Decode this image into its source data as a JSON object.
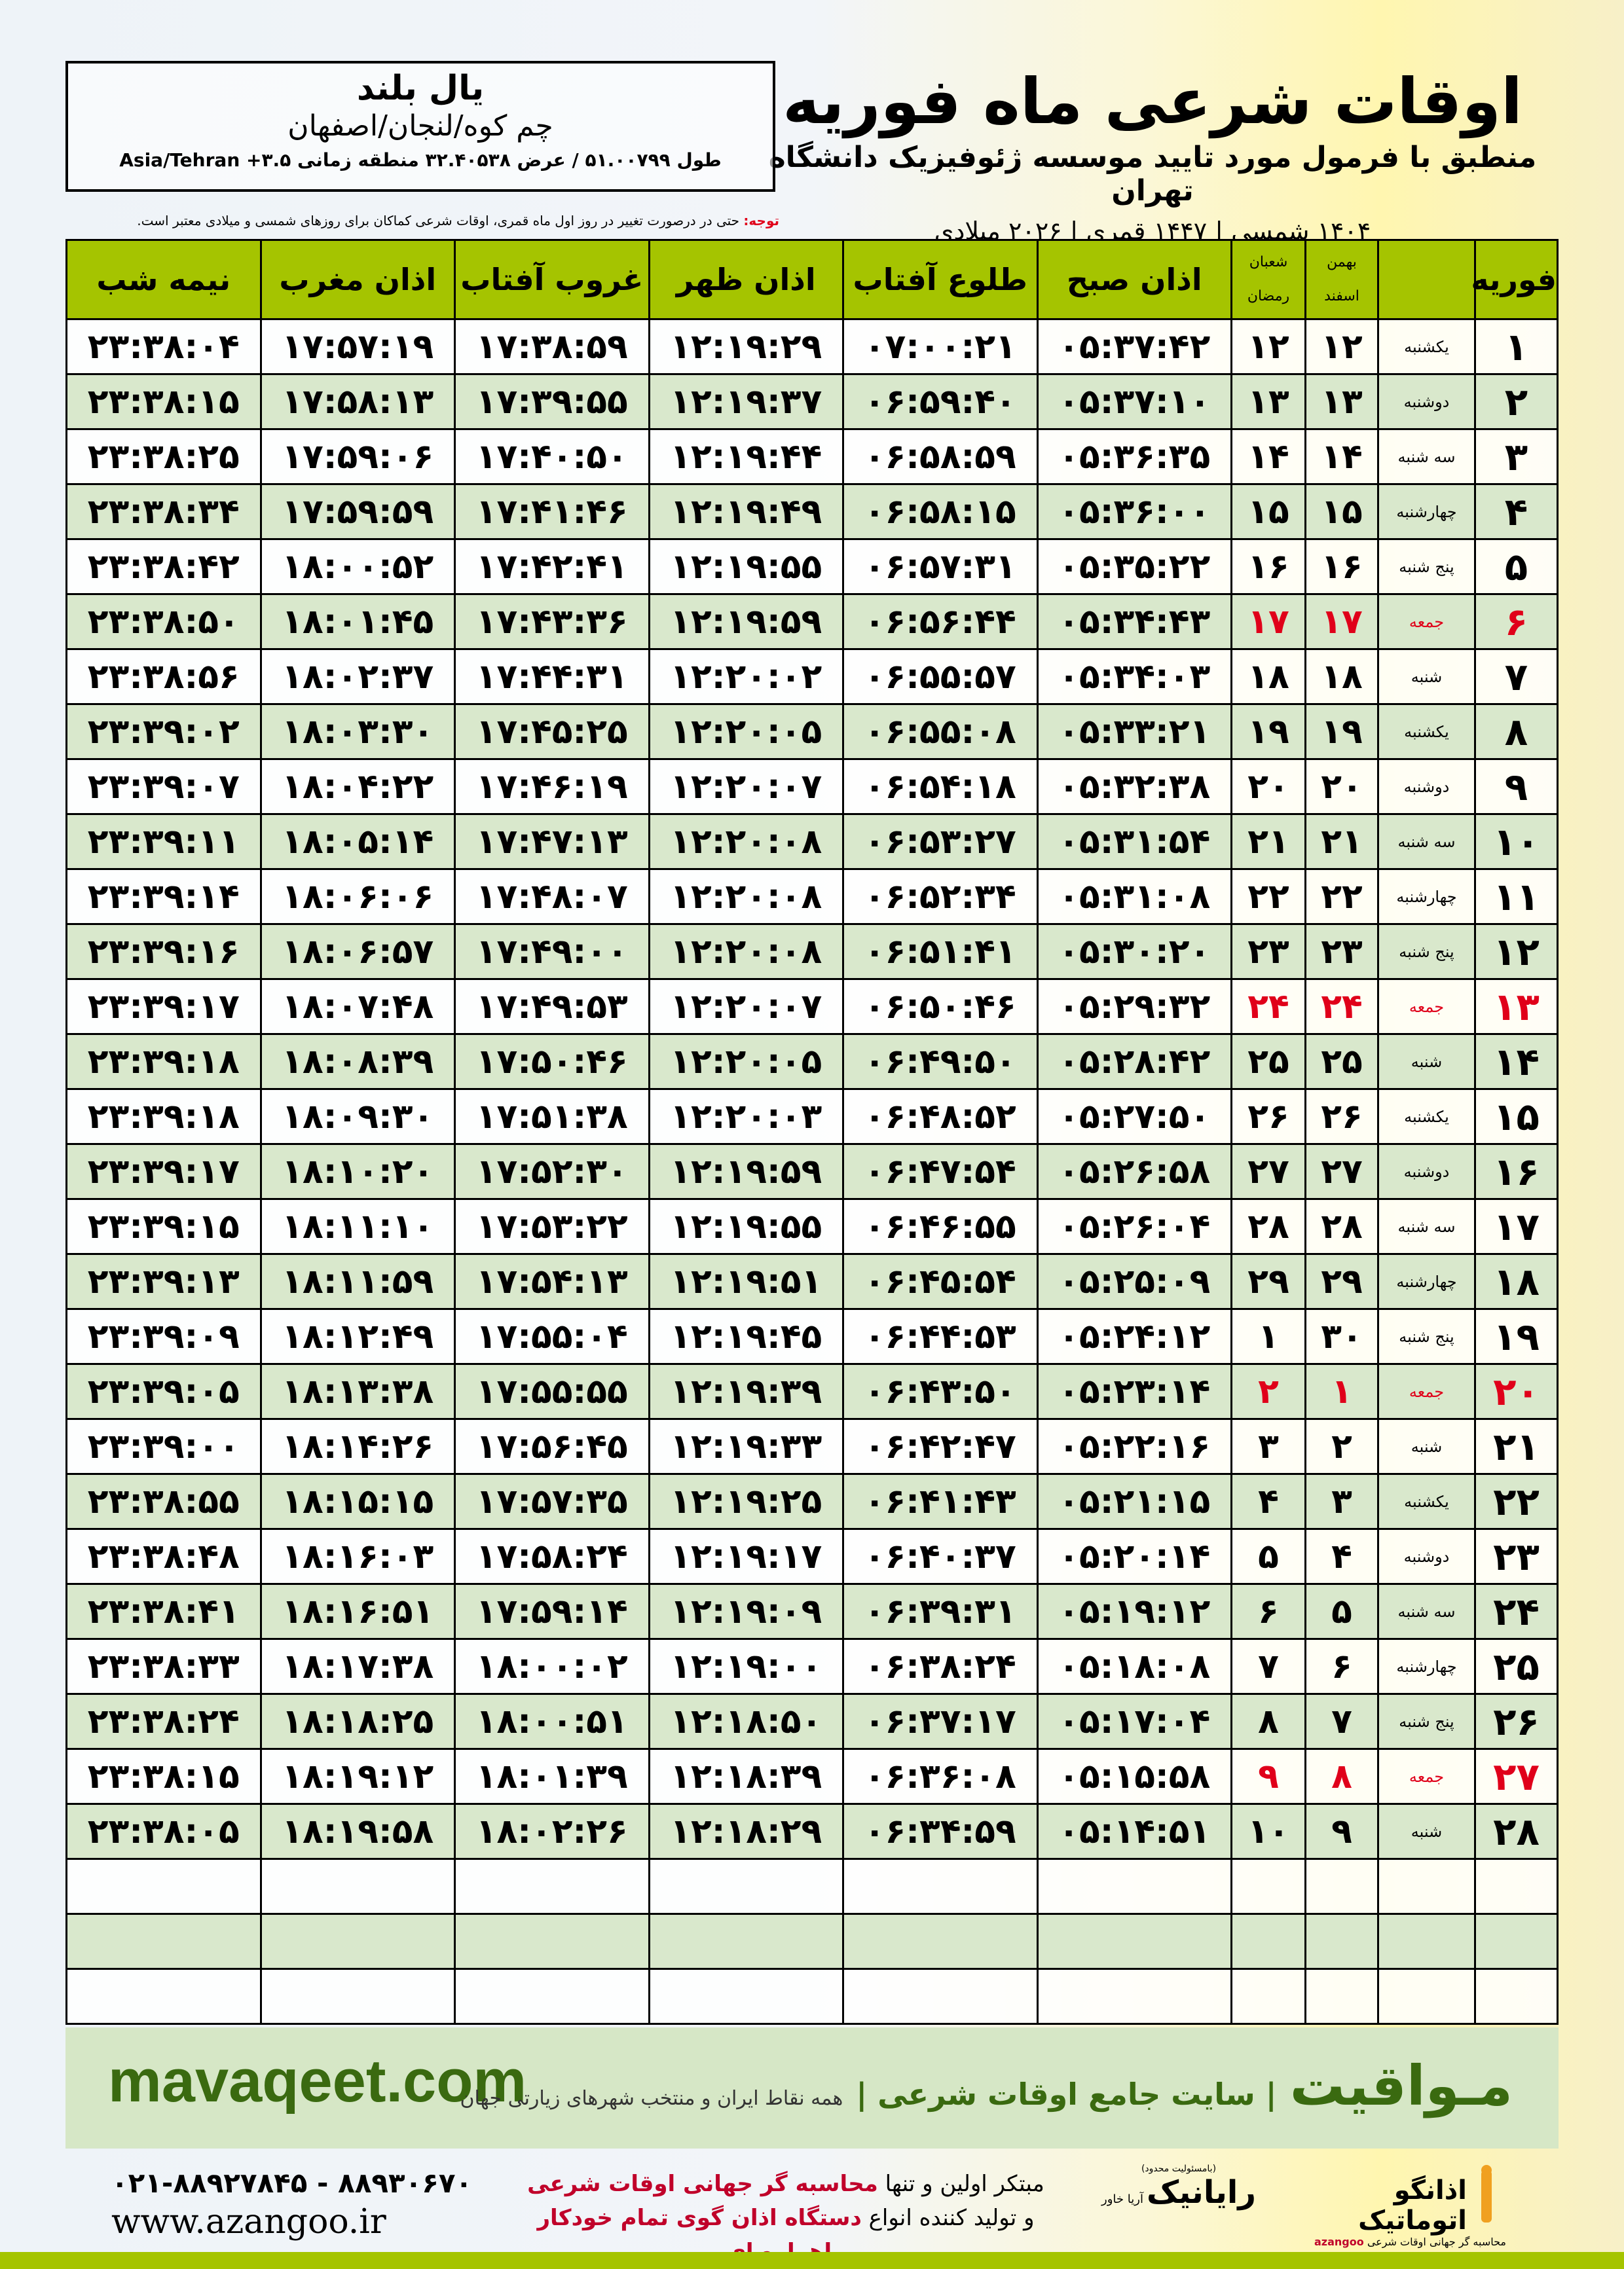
{
  "header": {
    "title": "اوقات شرعی ماه فوریه",
    "subtitle": "منطبق با فرمول مورد تایید موسسه ژئوفیزیک دانشگاه تهران",
    "years": "۱۴۰۴ شمسی | ۱۴۴۷ قمری | ۲۰۲۶ میلادی"
  },
  "location": {
    "name": "یال بلند",
    "region": "چم کوه/لنجان/اصفهان",
    "coords": "طول ۵۱.۰۰۷۹۹ / عرض ۳۲.۴۰۵۳۸ منطقه زمانی ۳.۵+ Asia/Tehran"
  },
  "note": {
    "label": "توجه:",
    "text": " حتی در درصورت تغییر در روز اول ماه قمری، اوقات شرعی کماکان برای روزهای شمسی و میلادی معتبر است."
  },
  "table": {
    "headers": {
      "month": "فوریه",
      "solar_top": "بهمن",
      "solar_bottom": "اسفند",
      "lunar_top": "شعبان",
      "lunar_bottom": "رمضان",
      "fajr": "اذان صبح",
      "sunrise": "طلوع آفتاب",
      "dhuhr": "اذان ظهر",
      "sunset": "غروب آفتاب",
      "maghrib": "اذان مغرب",
      "midnight": "نیمه شب"
    },
    "rows": [
      [
        "۱",
        "یکشنبه",
        "۱۲",
        "۱۲",
        "۰۵:۳۷:۴۲",
        "۰۷:۰۰:۲۱",
        "۱۲:۱۹:۲۹",
        "۱۷:۳۸:۵۹",
        "۱۷:۵۷:۱۹",
        "۲۳:۳۸:۰۴"
      ],
      [
        "۲",
        "دوشنبه",
        "۱۳",
        "۱۳",
        "۰۵:۳۷:۱۰",
        "۰۶:۵۹:۴۰",
        "۱۲:۱۹:۳۷",
        "۱۷:۳۹:۵۵",
        "۱۷:۵۸:۱۳",
        "۲۳:۳۸:۱۵"
      ],
      [
        "۳",
        "سه شنبه",
        "۱۴",
        "۱۴",
        "۰۵:۳۶:۳۵",
        "۰۶:۵۸:۵۹",
        "۱۲:۱۹:۴۴",
        "۱۷:۴۰:۵۰",
        "۱۷:۵۹:۰۶",
        "۲۳:۳۸:۲۵"
      ],
      [
        "۴",
        "چهارشنبه",
        "۱۵",
        "۱۵",
        "۰۵:۳۶:۰۰",
        "۰۶:۵۸:۱۵",
        "۱۲:۱۹:۴۹",
        "۱۷:۴۱:۴۶",
        "۱۷:۵۹:۵۹",
        "۲۳:۳۸:۳۴"
      ],
      [
        "۵",
        "پنج شنبه",
        "۱۶",
        "۱۶",
        "۰۵:۳۵:۲۲",
        "۰۶:۵۷:۳۱",
        "۱۲:۱۹:۵۵",
        "۱۷:۴۲:۴۱",
        "۱۸:۰۰:۵۲",
        "۲۳:۳۸:۴۲"
      ],
      [
        "۶",
        "جمعه",
        "۱۷",
        "۱۷",
        "۰۵:۳۴:۴۳",
        "۰۶:۵۶:۴۴",
        "۱۲:۱۹:۵۹",
        "۱۷:۴۳:۳۶",
        "۱۸:۰۱:۴۵",
        "۲۳:۳۸:۵۰"
      ],
      [
        "۷",
        "شنبه",
        "۱۸",
        "۱۸",
        "۰۵:۳۴:۰۳",
        "۰۶:۵۵:۵۷",
        "۱۲:۲۰:۰۲",
        "۱۷:۴۴:۳۱",
        "۱۸:۰۲:۳۷",
        "۲۳:۳۸:۵۶"
      ],
      [
        "۸",
        "یکشنبه",
        "۱۹",
        "۱۹",
        "۰۵:۳۳:۲۱",
        "۰۶:۵۵:۰۸",
        "۱۲:۲۰:۰۵",
        "۱۷:۴۵:۲۵",
        "۱۸:۰۳:۳۰",
        "۲۳:۳۹:۰۲"
      ],
      [
        "۹",
        "دوشنبه",
        "۲۰",
        "۲۰",
        "۰۵:۳۲:۳۸",
        "۰۶:۵۴:۱۸",
        "۱۲:۲۰:۰۷",
        "۱۷:۴۶:۱۹",
        "۱۸:۰۴:۲۲",
        "۲۳:۳۹:۰۷"
      ],
      [
        "۱۰",
        "سه شنبه",
        "۲۱",
        "۲۱",
        "۰۵:۳۱:۵۴",
        "۰۶:۵۳:۲۷",
        "۱۲:۲۰:۰۸",
        "۱۷:۴۷:۱۳",
        "۱۸:۰۵:۱۴",
        "۲۳:۳۹:۱۱"
      ],
      [
        "۱۱",
        "چهارشنبه",
        "۲۲",
        "۲۲",
        "۰۵:۳۱:۰۸",
        "۰۶:۵۲:۳۴",
        "۱۲:۲۰:۰۸",
        "۱۷:۴۸:۰۷",
        "۱۸:۰۶:۰۶",
        "۲۳:۳۹:۱۴"
      ],
      [
        "۱۲",
        "پنج شنبه",
        "۲۳",
        "۲۳",
        "۰۵:۳۰:۲۰",
        "۰۶:۵۱:۴۱",
        "۱۲:۲۰:۰۸",
        "۱۷:۴۹:۰۰",
        "۱۸:۰۶:۵۷",
        "۲۳:۳۹:۱۶"
      ],
      [
        "۱۳",
        "جمعه",
        "۲۴",
        "۲۴",
        "۰۵:۲۹:۳۲",
        "۰۶:۵۰:۴۶",
        "۱۲:۲۰:۰۷",
        "۱۷:۴۹:۵۳",
        "۱۸:۰۷:۴۸",
        "۲۳:۳۹:۱۷"
      ],
      [
        "۱۴",
        "شنبه",
        "۲۵",
        "۲۵",
        "۰۵:۲۸:۴۲",
        "۰۶:۴۹:۵۰",
        "۱۲:۲۰:۰۵",
        "۱۷:۵۰:۴۶",
        "۱۸:۰۸:۳۹",
        "۲۳:۳۹:۱۸"
      ],
      [
        "۱۵",
        "یکشنبه",
        "۲۶",
        "۲۶",
        "۰۵:۲۷:۵۰",
        "۰۶:۴۸:۵۲",
        "۱۲:۲۰:۰۳",
        "۱۷:۵۱:۳۸",
        "۱۸:۰۹:۳۰",
        "۲۳:۳۹:۱۸"
      ],
      [
        "۱۶",
        "دوشنبه",
        "۲۷",
        "۲۷",
        "۰۵:۲۶:۵۸",
        "۰۶:۴۷:۵۴",
        "۱۲:۱۹:۵۹",
        "۱۷:۵۲:۳۰",
        "۱۸:۱۰:۲۰",
        "۲۳:۳۹:۱۷"
      ],
      [
        "۱۷",
        "سه شنبه",
        "۲۸",
        "۲۸",
        "۰۵:۲۶:۰۴",
        "۰۶:۴۶:۵۵",
        "۱۲:۱۹:۵۵",
        "۱۷:۵۳:۲۲",
        "۱۸:۱۱:۱۰",
        "۲۳:۳۹:۱۵"
      ],
      [
        "۱۸",
        "چهارشنبه",
        "۲۹",
        "۲۹",
        "۰۵:۲۵:۰۹",
        "۰۶:۴۵:۵۴",
        "۱۲:۱۹:۵۱",
        "۱۷:۵۴:۱۳",
        "۱۸:۱۱:۵۹",
        "۲۳:۳۹:۱۳"
      ],
      [
        "۱۹",
        "پنج شنبه",
        "۳۰",
        "۱",
        "۰۵:۲۴:۱۲",
        "۰۶:۴۴:۵۳",
        "۱۲:۱۹:۴۵",
        "۱۷:۵۵:۰۴",
        "۱۸:۱۲:۴۹",
        "۲۳:۳۹:۰۹"
      ],
      [
        "۲۰",
        "جمعه",
        "۱",
        "۲",
        "۰۵:۲۳:۱۴",
        "۰۶:۴۳:۵۰",
        "۱۲:۱۹:۳۹",
        "۱۷:۵۵:۵۵",
        "۱۸:۱۳:۳۸",
        "۲۳:۳۹:۰۵"
      ],
      [
        "۲۱",
        "شنبه",
        "۲",
        "۳",
        "۰۵:۲۲:۱۶",
        "۰۶:۴۲:۴۷",
        "۱۲:۱۹:۳۳",
        "۱۷:۵۶:۴۵",
        "۱۸:۱۴:۲۶",
        "۲۳:۳۹:۰۰"
      ],
      [
        "۲۲",
        "یکشنبه",
        "۳",
        "۴",
        "۰۵:۲۱:۱۵",
        "۰۶:۴۱:۴۳",
        "۱۲:۱۹:۲۵",
        "۱۷:۵۷:۳۵",
        "۱۸:۱۵:۱۵",
        "۲۳:۳۸:۵۵"
      ],
      [
        "۲۳",
        "دوشنبه",
        "۴",
        "۵",
        "۰۵:۲۰:۱۴",
        "۰۶:۴۰:۳۷",
        "۱۲:۱۹:۱۷",
        "۱۷:۵۸:۲۴",
        "۱۸:۱۶:۰۳",
        "۲۳:۳۸:۴۸"
      ],
      [
        "۲۴",
        "سه شنبه",
        "۵",
        "۶",
        "۰۵:۱۹:۱۲",
        "۰۶:۳۹:۳۱",
        "۱۲:۱۹:۰۹",
        "۱۷:۵۹:۱۴",
        "۱۸:۱۶:۵۱",
        "۲۳:۳۸:۴۱"
      ],
      [
        "۲۵",
        "چهارشنبه",
        "۶",
        "۷",
        "۰۵:۱۸:۰۸",
        "۰۶:۳۸:۲۴",
        "۱۲:۱۹:۰۰",
        "۱۸:۰۰:۰۲",
        "۱۸:۱۷:۳۸",
        "۲۳:۳۸:۳۳"
      ],
      [
        "۲۶",
        "پنج شنبه",
        "۷",
        "۸",
        "۰۵:۱۷:۰۴",
        "۰۶:۳۷:۱۷",
        "۱۲:۱۸:۵۰",
        "۱۸:۰۰:۵۱",
        "۱۸:۱۸:۲۵",
        "۲۳:۳۸:۲۴"
      ],
      [
        "۲۷",
        "جمعه",
        "۸",
        "۹",
        "۰۵:۱۵:۵۸",
        "۰۶:۳۶:۰۸",
        "۱۲:۱۸:۳۹",
        "۱۸:۰۱:۳۹",
        "۱۸:۱۹:۱۲",
        "۲۳:۳۸:۱۵"
      ],
      [
        "۲۸",
        "شنبه",
        "۹",
        "۱۰",
        "۰۵:۱۴:۵۱",
        "۰۶:۳۴:۵۹",
        "۱۲:۱۸:۲۹",
        "۱۸:۰۲:۲۶",
        "۱۸:۱۹:۵۸",
        "۲۳:۳۸:۰۵"
      ]
    ],
    "empty_rows": 3,
    "holiday_weekday": "جمعه"
  },
  "footer": {
    "site": "mavaqeet.com",
    "logo": "مـواقیت",
    "desc": "| سایت جامع اوقات شرعی |",
    "sub": "همه نقاط ایران و منتخب شهرهای زیارتی جهان",
    "phone": "۰۲۱-۸۸۹۲۷۸۴۵ - ۸۸۹۳۰۶۷۰",
    "web": "www.azangoo.ir",
    "promo1_a": "مبتکر اولین و تنها ",
    "promo1_b": "محاسبه گر جهانی اوقات شرعی",
    "promo2_a": "و تولید کننده انواع ",
    "promo2_b": "دستگاه اذان گوی تمام خودکار ماهواره ای",
    "logo_rayanik": "رایانیک",
    "logo_rayanik_small": "(بامسئولیت محدود)",
    "logo_rayanik_side": "آریا خاور",
    "logo_azangoo": "اذانگو اتوماتیک",
    "logo_azangoo_sub": "محاسبه گر جهانی اوقات شرعی",
    "logo_azangoo_en": "azangoo"
  },
  "colors": {
    "header_green": "#a5c400",
    "row_alt": "#d9e8cc",
    "holiday_red": "#e0001a",
    "brand_green": "#3a6a10"
  }
}
